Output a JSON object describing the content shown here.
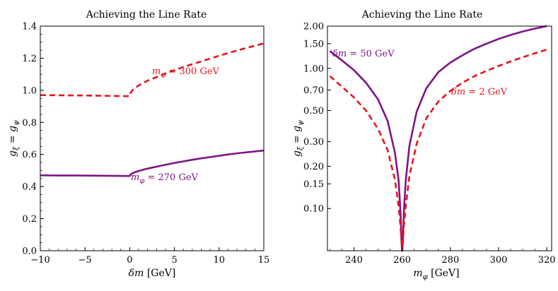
{
  "chart_data": [
    {
      "type": "line",
      "title": "Achieving the Line Rate",
      "xlabel": "δm [GeV]",
      "ylabel": "g_ξ = g_ψ",
      "xlim": [
        -10,
        15
      ],
      "ylim": [
        0,
        1.4
      ],
      "xticks": [
        -10,
        -5,
        0,
        5,
        10,
        15
      ],
      "xtick_labels": [
        "−10",
        "−5",
        "0",
        "5",
        "10",
        "15"
      ],
      "yticks": [
        0,
        0.2,
        0.4,
        0.6,
        0.8,
        1.0,
        1.2,
        1.4
      ],
      "ytick_labels": [
        "0.0",
        "0.2",
        "0.4",
        "0.6",
        "0.8",
        "1.0",
        "1.2",
        "1.4"
      ],
      "series": [
        {
          "name": "m_φ = 300 GeV",
          "label_main": "m",
          "label_sub": "φ",
          "label_rest": " = 300 GeV",
          "color": "#e8141c",
          "style": "dashed",
          "x": [
            -10,
            -8,
            -6,
            -4,
            -2,
            0,
            0.1,
            0.3,
            0.6,
            1,
            1.5,
            2,
            3,
            4,
            5,
            6,
            7,
            8,
            9,
            10,
            11,
            12,
            13,
            14,
            15
          ],
          "y": [
            0.97,
            0.969,
            0.968,
            0.967,
            0.965,
            0.963,
            0.985,
            1.0,
            1.015,
            1.03,
            1.045,
            1.06,
            1.082,
            1.105,
            1.125,
            1.145,
            1.163,
            1.18,
            1.198,
            1.215,
            1.232,
            1.248,
            1.263,
            1.278,
            1.292
          ]
        },
        {
          "name": "m_φ = 270 GeV",
          "label_main": "m",
          "label_sub": "φ",
          "label_rest": " = 270 GeV",
          "color": "#7d1486",
          "style": "solid",
          "x": [
            -10,
            -8,
            -6,
            -4,
            -2,
            0,
            0.1,
            0.3,
            0.6,
            1,
            1.5,
            2,
            3,
            4,
            5,
            6,
            7,
            8,
            9,
            10,
            11,
            12,
            13,
            14,
            15
          ],
          "y": [
            0.47,
            0.469,
            0.469,
            0.468,
            0.467,
            0.466,
            0.475,
            0.483,
            0.49,
            0.497,
            0.505,
            0.512,
            0.524,
            0.536,
            0.547,
            0.557,
            0.567,
            0.576,
            0.584,
            0.592,
            0.6,
            0.607,
            0.613,
            0.619,
            0.625
          ]
        }
      ]
    },
    {
      "type": "line",
      "title": "Achieving the Line Rate",
      "xlabel": "m_φ [GeV]",
      "ylabel": "g_ξ = g_ψ",
      "xscale": "linear",
      "yscale": "log",
      "xlim": [
        229,
        322
      ],
      "ylim": [
        0.05,
        2.0
      ],
      "xticks": [
        240,
        260,
        280,
        300,
        320
      ],
      "xtick_labels": [
        "240",
        "260",
        "280",
        "300",
        "320"
      ],
      "yticks": [
        0.1,
        0.15,
        0.2,
        0.3,
        0.5,
        0.7,
        1.0,
        1.5,
        2.0
      ],
      "ytick_labels": [
        "0.10",
        "0.15",
        "0.20",
        "0.30",
        "0.50",
        "0.70",
        "1.00",
        "1.50",
        "2.00"
      ],
      "series": [
        {
          "name": "δm = 50 GeV",
          "label_main": "δm",
          "label_sub": "",
          "label_rest": " = 50 GeV",
          "color": "#7d1486",
          "style": "solid",
          "x": [
            230,
            235,
            240,
            245,
            250,
            254,
            257,
            258.5,
            259.3,
            259.8,
            260,
            260.2,
            260.7,
            261.5,
            263,
            266,
            270,
            275,
            280,
            285,
            290,
            295,
            300,
            305,
            310,
            315,
            320
          ],
          "y": [
            1.33,
            1.14,
            0.97,
            0.79,
            0.6,
            0.42,
            0.25,
            0.16,
            0.095,
            0.055,
            0.05,
            0.055,
            0.095,
            0.16,
            0.28,
            0.49,
            0.72,
            0.94,
            1.1,
            1.24,
            1.38,
            1.5,
            1.62,
            1.73,
            1.83,
            1.92,
            2.0
          ]
        },
        {
          "name": "δm = 2 GeV",
          "label_main": "δm",
          "label_sub": "",
          "label_rest": " = 2 GeV",
          "color": "#e8141c",
          "style": "dashed",
          "x": [
            230,
            235,
            240,
            245,
            250,
            254,
            257,
            258.5,
            259.3,
            259.8,
            260,
            260.2,
            260.7,
            261.5,
            263,
            266,
            270,
            275,
            280,
            285,
            290,
            295,
            300,
            305,
            310,
            315,
            320
          ],
          "y": [
            0.88,
            0.74,
            0.62,
            0.5,
            0.37,
            0.26,
            0.16,
            0.105,
            0.075,
            0.055,
            0.05,
            0.055,
            0.075,
            0.105,
            0.17,
            0.29,
            0.44,
            0.58,
            0.69,
            0.79,
            0.88,
            0.96,
            1.04,
            1.12,
            1.2,
            1.28,
            1.36
          ]
        }
      ]
    }
  ]
}
